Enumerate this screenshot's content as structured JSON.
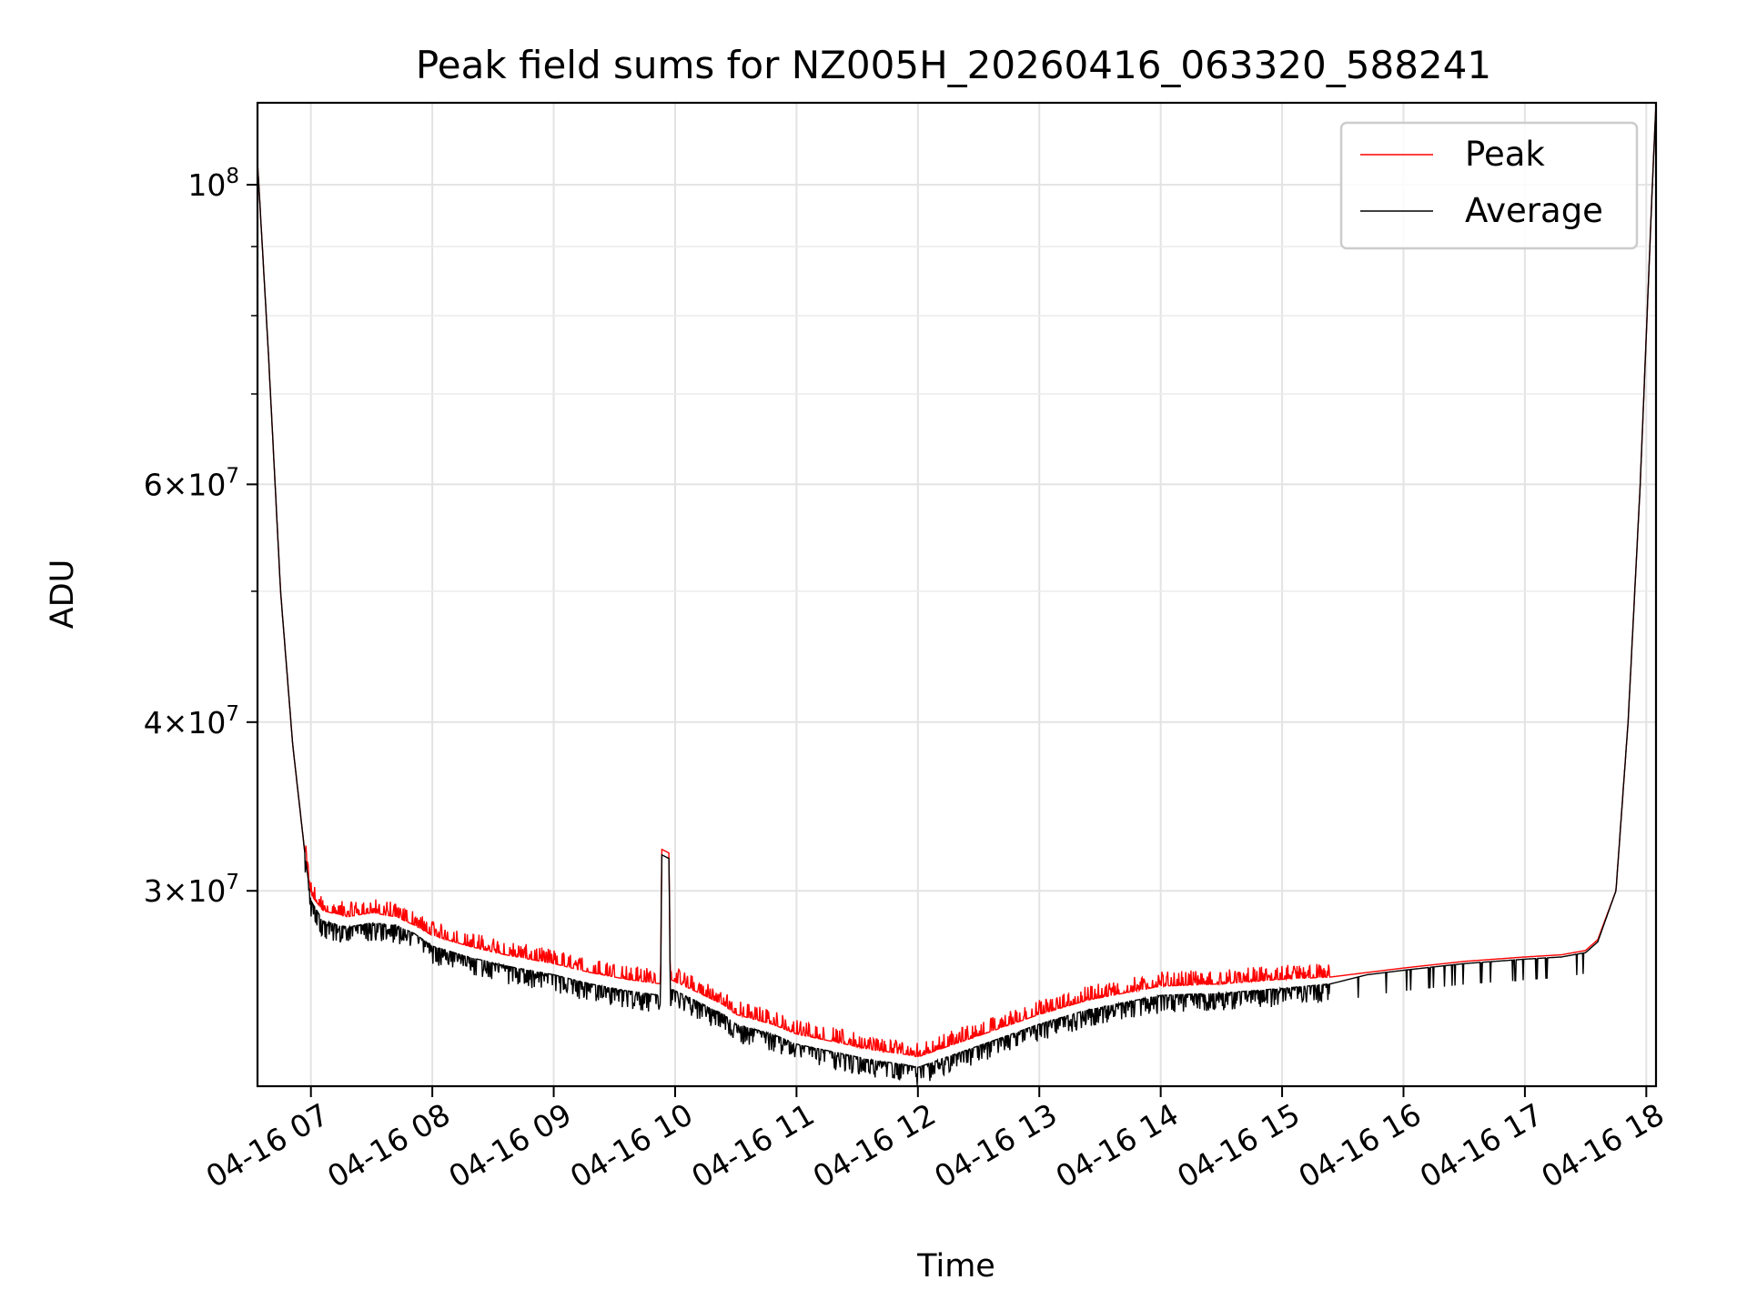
{
  "chart_data": {
    "type": "line",
    "title": "Peak field sums for NZ005H_20260416_063320_588241",
    "xlabel": "Time",
    "ylabel": "ADU",
    "yscale": "log",
    "grid": true,
    "legend_position": "top-right",
    "xlim_hours": [
      6.56,
      18.08
    ],
    "ylim": [
      21500000,
      115000000
    ],
    "x_ticks": [
      {
        "hour": 7,
        "label": "04-16 07"
      },
      {
        "hour": 8,
        "label": "04-16 08"
      },
      {
        "hour": 9,
        "label": "04-16 09"
      },
      {
        "hour": 10,
        "label": "04-16 10"
      },
      {
        "hour": 11,
        "label": "04-16 11"
      },
      {
        "hour": 12,
        "label": "04-16 12"
      },
      {
        "hour": 13,
        "label": "04-16 13"
      },
      {
        "hour": 14,
        "label": "04-16 14"
      },
      {
        "hour": 15,
        "label": "04-16 15"
      },
      {
        "hour": 16,
        "label": "04-16 16"
      },
      {
        "hour": 17,
        "label": "04-16 17"
      },
      {
        "hour": 18,
        "label": "04-16 18"
      }
    ],
    "y_ticks": [
      {
        "value": 100000000,
        "base": "10",
        "exp": "8"
      },
      {
        "value": 60000000,
        "base": "6×10",
        "exp": "7"
      },
      {
        "value": 40000000,
        "base": "4×10",
        "exp": "7"
      },
      {
        "value": 30000000,
        "base": "3×10",
        "exp": "7"
      }
    ],
    "series": [
      {
        "name": "Peak",
        "color": "#ff0000",
        "x_hours": [
          6.56,
          6.65,
          6.75,
          6.85,
          6.95,
          7.0,
          7.1,
          7.3,
          7.5,
          7.7,
          7.85,
          8.0,
          8.3,
          8.6,
          9.0,
          9.3,
          9.6,
          9.88,
          9.89,
          9.95,
          9.96,
          10.2,
          10.4,
          10.5,
          10.8,
          11.0,
          11.3,
          11.6,
          11.9,
          12.0,
          12.3,
          12.6,
          13.0,
          13.4,
          13.8,
          14.0,
          14.5,
          15.0,
          15.4,
          15.7,
          16.0,
          16.5,
          17.0,
          17.3,
          17.5,
          17.6,
          17.75,
          17.85,
          17.95,
          18.05,
          18.08
        ],
        "values": [
          104000000,
          75000000,
          50000000,
          38500000,
          32000000,
          29800000,
          29000000,
          28700000,
          28900000,
          28700000,
          28300000,
          27800000,
          27300000,
          26900000,
          26500000,
          26100000,
          25800000,
          25600000,
          32200000,
          32000000,
          25800000,
          25200000,
          24700000,
          24300000,
          23900000,
          23500000,
          23200000,
          22900000,
          22700000,
          22600000,
          23100000,
          23600000,
          24300000,
          24900000,
          25300000,
          25500000,
          25600000,
          25800000,
          25900000,
          26100000,
          26300000,
          26600000,
          26800000,
          26900000,
          27100000,
          27600000,
          30000000,
          40000000,
          60000000,
          100000000,
          115000000
        ]
      },
      {
        "name": "Average",
        "color": "#000000",
        "x_hours": [
          6.56,
          6.65,
          6.75,
          6.85,
          6.95,
          7.0,
          7.1,
          7.3,
          7.5,
          7.7,
          7.85,
          8.0,
          8.3,
          8.6,
          9.0,
          9.3,
          9.6,
          9.88,
          9.89,
          9.95,
          9.96,
          10.2,
          10.4,
          10.5,
          10.8,
          11.0,
          11.3,
          11.6,
          11.9,
          12.0,
          12.3,
          12.6,
          13.0,
          13.4,
          13.8,
          14.0,
          14.5,
          15.0,
          15.4,
          15.7,
          16.0,
          16.5,
          17.0,
          17.3,
          17.5,
          17.6,
          17.75,
          17.85,
          17.95,
          18.05,
          18.08
        ],
        "values": [
          104000000,
          75000000,
          50000000,
          38500000,
          32000000,
          29500000,
          28500000,
          28200000,
          28400000,
          28300000,
          27900000,
          27300000,
          26800000,
          26400000,
          26000000,
          25600000,
          25300000,
          25100000,
          31900000,
          31700000,
          25400000,
          24800000,
          24300000,
          23900000,
          23500000,
          23100000,
          22800000,
          22500000,
          22300000,
          22200000,
          22700000,
          23200000,
          23900000,
          24500000,
          24900000,
          25100000,
          25200000,
          25400000,
          25600000,
          26000000,
          26200000,
          26500000,
          26700000,
          26800000,
          27000000,
          27500000,
          30000000,
          40000000,
          60000000,
          100000000,
          115000000
        ]
      }
    ]
  }
}
